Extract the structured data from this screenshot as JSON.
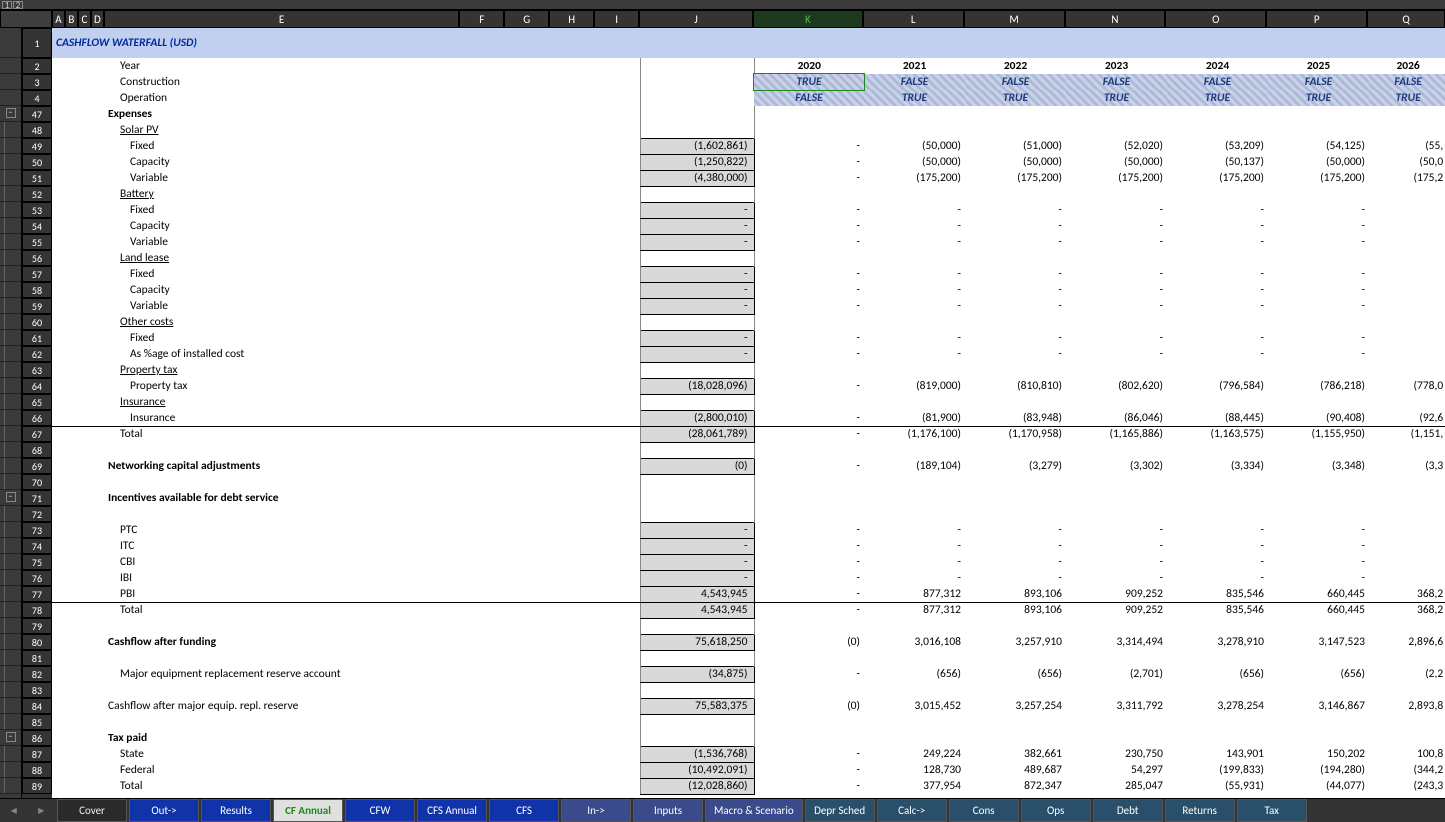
{
  "title": "CASHFLOW WATERFALL (USD)",
  "column_letters": [
    "A",
    "B",
    "C",
    "D",
    "E",
    "F",
    "G",
    "H",
    "I",
    "J",
    "K",
    "L",
    "M",
    "N",
    "O",
    "P",
    "Q"
  ],
  "selected_col": "K",
  "col_widths": {
    "A": 13,
    "B": 13,
    "C": 13,
    "D": 13,
    "E": 356,
    "F": 45,
    "G": 45,
    "H": 45,
    "I": 45,
    "J": 114,
    "K": 110,
    "L": 101,
    "M": 101,
    "N": 101,
    "O": 101,
    "P": 101,
    "Q": 78
  },
  "row_nums": [
    1,
    2,
    3,
    4,
    47,
    48,
    49,
    50,
    51,
    52,
    53,
    54,
    55,
    56,
    57,
    58,
    59,
    60,
    61,
    62,
    63,
    64,
    65,
    66,
    67,
    68,
    69,
    70,
    71,
    72,
    73,
    74,
    75,
    76,
    77,
    78,
    79,
    80,
    81,
    82,
    83,
    84,
    85,
    86,
    87,
    88,
    89
  ],
  "year_row": {
    "label": "Year",
    "y": [
      "2020",
      "2021",
      "2022",
      "2023",
      "2024",
      "2025",
      "2026"
    ]
  },
  "const_row": {
    "label": "Construction",
    "v": [
      "TRUE",
      "FALSE",
      "FALSE",
      "FALSE",
      "FALSE",
      "FALSE",
      "FALSE"
    ]
  },
  "oper_row": {
    "label": "Operation",
    "v": [
      "FALSE",
      "TRUE",
      "TRUE",
      "TRUE",
      "TRUE",
      "TRUE",
      "TRUE"
    ]
  },
  "rows": [
    {
      "r": 47,
      "ind": 0,
      "b": true,
      "label": "Expenses"
    },
    {
      "r": 48,
      "ind": 1,
      "u": true,
      "label": "Solar PV"
    },
    {
      "r": 49,
      "ind": 2,
      "label": "Fixed",
      "box": "(1,602,861)",
      "v": [
        "-",
        "(50,000)",
        "(51,000)",
        "(52,020)",
        "(53,209)",
        "(54,125)",
        "(55,"
      ]
    },
    {
      "r": 50,
      "ind": 2,
      "label": "Capacity",
      "box": "(1,250,822)",
      "v": [
        "-",
        "(50,000)",
        "(50,000)",
        "(50,000)",
        "(50,137)",
        "(50,000)",
        "(50,0"
      ]
    },
    {
      "r": 51,
      "ind": 2,
      "label": "Variable",
      "box": "(4,380,000)",
      "v": [
        "-",
        "(175,200)",
        "(175,200)",
        "(175,200)",
        "(175,200)",
        "(175,200)",
        "(175,2"
      ]
    },
    {
      "r": 52,
      "ind": 1,
      "u": true,
      "label": "Battery"
    },
    {
      "r": 53,
      "ind": 2,
      "label": "Fixed",
      "box": "-",
      "v": [
        "-",
        "-",
        "-",
        "-",
        "-",
        "-",
        ""
      ]
    },
    {
      "r": 54,
      "ind": 2,
      "label": "Capacity",
      "box": "-",
      "v": [
        "-",
        "-",
        "-",
        "-",
        "-",
        "-",
        ""
      ]
    },
    {
      "r": 55,
      "ind": 2,
      "label": "Variable",
      "box": "-",
      "v": [
        "-",
        "-",
        "-",
        "-",
        "-",
        "-",
        ""
      ]
    },
    {
      "r": 56,
      "ind": 1,
      "u": true,
      "label": "Land lease"
    },
    {
      "r": 57,
      "ind": 2,
      "label": "Fixed",
      "box": "-",
      "v": [
        "-",
        "-",
        "-",
        "-",
        "-",
        "-",
        ""
      ]
    },
    {
      "r": 58,
      "ind": 2,
      "label": "Capacity",
      "box": "-",
      "v": [
        "-",
        "-",
        "-",
        "-",
        "-",
        "-",
        ""
      ]
    },
    {
      "r": 59,
      "ind": 2,
      "label": "Variable",
      "box": "-",
      "v": [
        "-",
        "-",
        "-",
        "-",
        "-",
        "-",
        ""
      ]
    },
    {
      "r": 60,
      "ind": 1,
      "u": true,
      "label": "Other costs"
    },
    {
      "r": 61,
      "ind": 2,
      "label": "Fixed",
      "box": "-",
      "v": [
        "-",
        "-",
        "-",
        "-",
        "-",
        "-",
        ""
      ]
    },
    {
      "r": 62,
      "ind": 2,
      "label": "As %age of installed cost",
      "box": "-",
      "v": [
        "-",
        "-",
        "-",
        "-",
        "-",
        "-",
        ""
      ]
    },
    {
      "r": 63,
      "ind": 1,
      "u": true,
      "label": "Property tax"
    },
    {
      "r": 64,
      "ind": 2,
      "label": "Property tax",
      "box": "(18,028,096)",
      "v": [
        "-",
        "(819,000)",
        "(810,810)",
        "(802,620)",
        "(796,584)",
        "(786,218)",
        "(778,0"
      ]
    },
    {
      "r": 65,
      "ind": 1,
      "u": true,
      "label": "Insurance"
    },
    {
      "r": 66,
      "ind": 2,
      "label": "Insurance",
      "box": "(2,800,010)",
      "v": [
        "-",
        "(81,900)",
        "(83,948)",
        "(86,046)",
        "(88,445)",
        "(90,408)",
        "(92,6"
      ]
    },
    {
      "r": 67,
      "ind": 1,
      "label": "Total",
      "box": "(28,061,789)",
      "v": [
        "-",
        "(1,176,100)",
        "(1,170,958)",
        "(1,165,886)",
        "(1,163,575)",
        "(1,155,950)",
        "(1,151,"
      ],
      "topline": true
    },
    {
      "r": 68,
      "ind": 0,
      "label": ""
    },
    {
      "r": 69,
      "ind": 0,
      "b": true,
      "label": "Networking capital adjustments",
      "box": "(0)",
      "v": [
        "-",
        "(189,104)",
        "(3,279)",
        "(3,302)",
        "(3,334)",
        "(3,348)",
        "(3,3"
      ]
    },
    {
      "r": 70,
      "ind": 0,
      "label": ""
    },
    {
      "r": 71,
      "ind": 0,
      "b": true,
      "label": "Incentives available for debt service"
    },
    {
      "r": 72,
      "ind": 0,
      "label": ""
    },
    {
      "r": 73,
      "ind": 1,
      "label": "PTC",
      "box": "-",
      "v": [
        "-",
        "-",
        "-",
        "-",
        "-",
        "-",
        ""
      ]
    },
    {
      "r": 74,
      "ind": 1,
      "label": "ITC",
      "box": "-",
      "v": [
        "-",
        "-",
        "-",
        "-",
        "-",
        "-",
        ""
      ]
    },
    {
      "r": 75,
      "ind": 1,
      "label": "CBI",
      "box": "-",
      "v": [
        "-",
        "-",
        "-",
        "-",
        "-",
        "-",
        ""
      ]
    },
    {
      "r": 76,
      "ind": 1,
      "label": "IBI",
      "box": "-",
      "v": [
        "-",
        "-",
        "-",
        "-",
        "-",
        "-",
        ""
      ]
    },
    {
      "r": 77,
      "ind": 1,
      "label": "PBI",
      "box": "4,543,945",
      "v": [
        "-",
        "877,312",
        "893,106",
        "909,252",
        "835,546",
        "660,445",
        "368,2"
      ]
    },
    {
      "r": 78,
      "ind": 1,
      "label": "Total",
      "box": "4,543,945",
      "v": [
        "-",
        "877,312",
        "893,106",
        "909,252",
        "835,546",
        "660,445",
        "368,2"
      ],
      "topline": true
    },
    {
      "r": 79,
      "ind": 0,
      "label": ""
    },
    {
      "r": 80,
      "ind": 0,
      "b": true,
      "label": "Cashflow after funding",
      "box": "75,618,250",
      "v": [
        "(0)",
        "3,016,108",
        "3,257,910",
        "3,314,494",
        "3,278,910",
        "3,147,523",
        "2,896,6"
      ]
    },
    {
      "r": 81,
      "ind": 0,
      "label": ""
    },
    {
      "r": 82,
      "ind": 1,
      "label": "Major equipment replacement reserve account",
      "box": "(34,875)",
      "v": [
        "-",
        "(656)",
        "(656)",
        "(2,701)",
        "(656)",
        "(656)",
        "(2,2"
      ]
    },
    {
      "r": 83,
      "ind": 0,
      "label": ""
    },
    {
      "r": 84,
      "ind": 0,
      "label": "Cashflow after major equip. repl. reserve",
      "box": "75,583,375",
      "v": [
        "(0)",
        "3,015,452",
        "3,257,254",
        "3,311,792",
        "3,278,254",
        "3,146,867",
        "2,893,8"
      ]
    },
    {
      "r": 85,
      "ind": 0,
      "label": ""
    },
    {
      "r": 86,
      "ind": 0,
      "b": true,
      "label": "Tax paid"
    },
    {
      "r": 87,
      "ind": 1,
      "label": "State",
      "box": "(1,536,768)",
      "v": [
        "-",
        "249,224",
        "382,661",
        "230,750",
        "143,901",
        "150,202",
        "100,8"
      ]
    },
    {
      "r": 88,
      "ind": 1,
      "label": "Federal",
      "box": "(10,492,091)",
      "v": [
        "-",
        "128,730",
        "489,687",
        "54,297",
        "(199,833)",
        "(194,280)",
        "(344,2"
      ]
    },
    {
      "r": 89,
      "ind": 1,
      "label": "Total",
      "box": "(12,028,860)",
      "v": [
        "-",
        "377,954",
        "872,347",
        "285,047",
        "(55,931)",
        "(44,077)",
        "(243,3"
      ],
      "cut": true
    }
  ],
  "tabs": [
    {
      "label": "Cover",
      "class": "dark"
    },
    {
      "label": "Out->",
      "class": ""
    },
    {
      "label": "Results",
      "class": ""
    },
    {
      "label": "CF Annual",
      "class": "active"
    },
    {
      "label": "CFW",
      "class": ""
    },
    {
      "label": "CFS Annual",
      "class": ""
    },
    {
      "label": "CFS",
      "class": ""
    },
    {
      "label": "In->",
      "class": "macro"
    },
    {
      "label": "Inputs",
      "class": "macro"
    },
    {
      "label": "Macro & Scenario",
      "class": "macro"
    },
    {
      "label": "Depr Sched",
      "class": "sched"
    },
    {
      "label": "Calc->",
      "class": "sched"
    },
    {
      "label": "Cons",
      "class": "sched"
    },
    {
      "label": "Ops",
      "class": "sched"
    },
    {
      "label": "Debt",
      "class": "sched"
    },
    {
      "label": "Returns",
      "class": "sched"
    },
    {
      "label": "Tax",
      "class": "sched"
    }
  ]
}
